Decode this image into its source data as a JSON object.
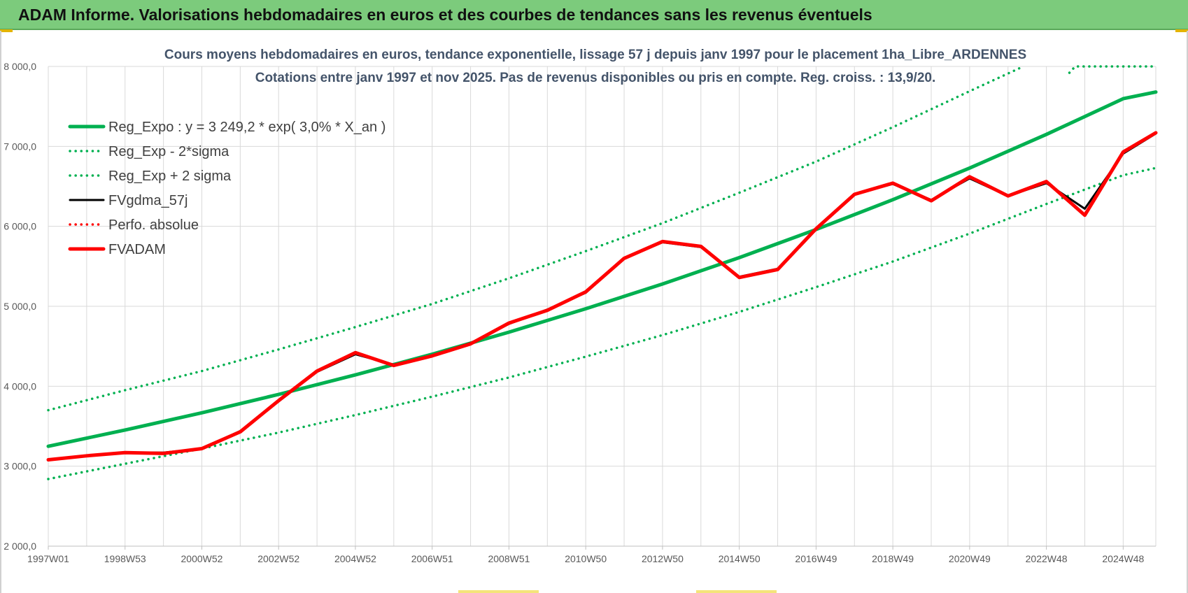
{
  "banner": {
    "title": "ADAM Informe. Valorisations hebdomadaires en euros et des courbes de tendances sans les revenus éventuels"
  },
  "colors": {
    "banner_bg": "#7ccb7c",
    "trend_green": "#00b050",
    "band_green": "#00b050",
    "gdma_black": "#000000",
    "adam_red": "#ff0000",
    "grid": "#d9d9d9",
    "title_text": "#44546a"
  },
  "chart_data": {
    "type": "line",
    "title": "Cours moyens hebdomadaires en euros, tendance exponentielle, lissage 57 j depuis janv 1997  pour le placement 1ha_Libre_ARDENNES",
    "subtitle": "Cotations entre janv 1997 et nov 2025. Pas de revenus disponibles ou pris en compte. Reg. croiss. : 13,9/20.",
    "xlabel": "",
    "ylabel": "",
    "xlim": [
      1997.0,
      2025.85
    ],
    "ylim": [
      2000,
      8000
    ],
    "y_ticks": [
      {
        "value": 2000,
        "label": "2 000,0"
      },
      {
        "value": 3000,
        "label": "3 000,0"
      },
      {
        "value": 4000,
        "label": "4 000,0"
      },
      {
        "value": 5000,
        "label": "5 000,0"
      },
      {
        "value": 6000,
        "label": "6 000,0"
      },
      {
        "value": 7000,
        "label": "7 000,0"
      },
      {
        "value": 8000,
        "label": "8 000,0"
      }
    ],
    "x_ticks": [
      {
        "value": 1997.0,
        "label": "1997W01"
      },
      {
        "value": 1999.0,
        "label": "1998W53"
      },
      {
        "value": 2001.0,
        "label": "2000W52"
      },
      {
        "value": 2003.0,
        "label": "2002W52"
      },
      {
        "value": 2005.0,
        "label": "2004W52"
      },
      {
        "value": 2007.0,
        "label": "2006W51"
      },
      {
        "value": 2009.0,
        "label": "2008W51"
      },
      {
        "value": 2011.0,
        "label": "2010W50"
      },
      {
        "value": 2013.0,
        "label": "2012W50"
      },
      {
        "value": 2015.0,
        "label": "2014W50"
      },
      {
        "value": 2017.0,
        "label": "2016W49"
      },
      {
        "value": 2019.0,
        "label": "2018W49"
      },
      {
        "value": 2021.0,
        "label": "2020W49"
      },
      {
        "value": 2023.0,
        "label": "2022W48"
      },
      {
        "value": 2025.0,
        "label": "2024W48"
      }
    ],
    "x_minor_ticks": [
      1998,
      2000,
      2002,
      2004,
      2006,
      2008,
      2010,
      2012,
      2014,
      2016,
      2018,
      2020,
      2022,
      2024
    ],
    "grid": true,
    "legend_position": "top-left",
    "series": [
      {
        "name": "Reg_Expo : y = 3 249,2 * exp( 3,0% *  X_an )",
        "style": "solid-thick",
        "color": "#00b050",
        "x": [
          1997.0,
          1999.0,
          2001.0,
          2003.0,
          2005.0,
          2007.0,
          2009.0,
          2011.0,
          2013.0,
          2015.0,
          2017.0,
          2019.0,
          2021.0,
          2023.0,
          2025.0,
          2025.85
        ],
        "y": [
          3249,
          3453,
          3668,
          3898,
          4142,
          4401,
          4676,
          4969,
          5279,
          5609,
          5960,
          6333,
          6729,
          7150,
          7597,
          7680
        ]
      },
      {
        "name": "Reg_Exp - 2*sigma",
        "style": "dotted",
        "color": "#00b050",
        "x": [
          1997.0,
          1999.0,
          2001.0,
          2003.0,
          2005.0,
          2007.0,
          2009.0,
          2011.0,
          2013.0,
          2015.0,
          2017.0,
          2019.0,
          2021.0,
          2023.0,
          2025.0,
          2025.85
        ],
        "y": [
          2840,
          3030,
          3220,
          3420,
          3640,
          3870,
          4110,
          4370,
          4640,
          4930,
          5240,
          5560,
          5910,
          6280,
          6640,
          6730
        ]
      },
      {
        "name": "Reg_Exp + 2 sigma",
        "style": "dotted",
        "color": "#00b050",
        "x": [
          1997.0,
          1999.0,
          2001.0,
          2003.0,
          2005.0,
          2007.0,
          2009.0,
          2011.0,
          2013.0,
          2015.0,
          2017.0,
          2019.0,
          2021.0,
          2022.4,
          null,
          2023.6,
          2023.75,
          2025.85
        ],
        "y": [
          3700,
          3950,
          4190,
          4460,
          4740,
          5030,
          5350,
          5690,
          6040,
          6420,
          6810,
          7240,
          7690,
          8000,
          null,
          7920,
          8000,
          8000
        ]
      },
      {
        "name": "FVgdma_57j",
        "style": "solid",
        "color": "#000000",
        "x": [
          1997.0,
          1998.0,
          1999.0,
          2000.0,
          2001.0,
          2002.0,
          2003.0,
          2004.0,
          2005.0,
          2006.0,
          2007.0,
          2008.0,
          2009.0,
          2010.0,
          2011.0,
          2012.0,
          2013.0,
          2014.0,
          2015.0,
          2016.0,
          2017.0,
          2018.0,
          2019.0,
          2020.0,
          2021.0,
          2022.0,
          2023.0,
          2024.0,
          2025.0,
          2025.85
        ],
        "y": [
          3080,
          3130,
          3170,
          3170,
          3220,
          3440,
          3810,
          4180,
          4400,
          4270,
          4380,
          4540,
          4780,
          4960,
          5170,
          5600,
          5800,
          5740,
          5370,
          5470,
          5960,
          6400,
          6530,
          6330,
          6600,
          6380,
          6540,
          6220,
          6910,
          7160
        ]
      },
      {
        "name": "Perfo. absolue",
        "style": "dotted",
        "color": "#ff0000",
        "x": [],
        "y": []
      },
      {
        "name": "FVADAM",
        "style": "solid-thick",
        "color": "#ff0000",
        "x": [
          1997.0,
          1998.0,
          1999.0,
          2000.0,
          2001.0,
          2002.0,
          2003.0,
          2004.0,
          2005.0,
          2006.0,
          2007.0,
          2008.0,
          2009.0,
          2010.0,
          2011.0,
          2012.0,
          2013.0,
          2014.0,
          2015.0,
          2016.0,
          2017.0,
          2018.0,
          2019.0,
          2020.0,
          2021.0,
          2022.0,
          2023.0,
          2024.0,
          2025.0,
          2025.85
        ],
        "y": [
          3080,
          3130,
          3170,
          3160,
          3220,
          3430,
          3820,
          4190,
          4420,
          4260,
          4380,
          4530,
          4790,
          4950,
          5180,
          5600,
          5810,
          5750,
          5360,
          5460,
          5970,
          6400,
          6540,
          6320,
          6620,
          6380,
          6560,
          6140,
          6930,
          7170
        ]
      }
    ]
  }
}
